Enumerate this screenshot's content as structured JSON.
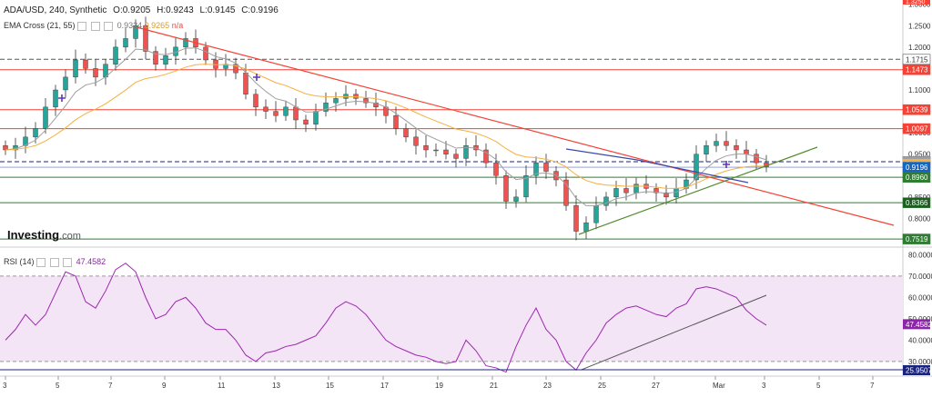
{
  "header": {
    "symbol": "ADA/USD, 240, Synthetic",
    "open": "O:0.9205",
    "high": "H:0.9243",
    "low": "L:0.9145",
    "close": "C:0.9196",
    "ema_label": "EMA Cross (21, 55)",
    "ema_v1": "0.9324",
    "ema_v2": "0.9265",
    "ema_v3": "n/a",
    "rsi_label": "RSI (14)",
    "rsi_value": "47.4582",
    "logo": "Investing",
    "logo_suffix": ".com"
  },
  "colors": {
    "up": "#26a69a",
    "down": "#ef5350",
    "ema_fast": "#9e9e9e",
    "ema_slow": "#f5b041",
    "red_line": "#f44336",
    "green_line": "#388e3c",
    "blue_line": "#1565c0",
    "rsi_line": "#9c27b0",
    "rsi_band": "#f3e5f5"
  },
  "chart_data": [
    {
      "type": "candlestick",
      "title": "ADA/USD, 240, Synthetic",
      "x_tick_labels": [
        "3",
        "5",
        "7",
        "9",
        "11",
        "13",
        "15",
        "17",
        "19",
        "21",
        "23",
        "25",
        "27",
        "Mar",
        "3",
        "5",
        "7"
      ],
      "y_tick_labels": [
        "1.3000",
        "1.2500",
        "1.2000",
        "1.1500",
        "1.1000",
        "1.0500",
        "1.0000",
        "0.9500",
        "0.9000",
        "0.8500",
        "0.8000"
      ],
      "ylim": [
        0.75,
        1.31
      ],
      "price_levels": [
        {
          "label": "1.1715",
          "value": 1.1715,
          "style": "dashed-gray",
          "color": "#555555"
        },
        {
          "label": "1.1473",
          "value": 1.1473,
          "style": "red",
          "color": "#f44336"
        },
        {
          "label": "1.0539",
          "value": 1.0539,
          "style": "red",
          "color": "#f44336"
        },
        {
          "label": "1.0097",
          "value": 1.0097,
          "style": "red",
          "color": "#f44336"
        },
        {
          "label": "0.9325",
          "value": 0.9325,
          "style": "dashed-blue",
          "color": "#1a237e"
        },
        {
          "label": "0.9324",
          "value": 0.9324,
          "style": "ema",
          "color": "#9e9e9e"
        },
        {
          "label": "0.9265",
          "value": 0.9265,
          "style": "ema",
          "color": "#f5b041"
        },
        {
          "label": "0.9196",
          "value": 0.9196,
          "style": "current",
          "color": "#1565c0"
        },
        {
          "label": "0.8960",
          "value": 0.896,
          "style": "green",
          "color": "#388e3c"
        },
        {
          "label": "0.8366",
          "value": 0.8366,
          "style": "green",
          "color": "#388e3c"
        },
        {
          "label": "0.7519",
          "value": 0.7519,
          "style": "green",
          "color": "#388e3c"
        }
      ],
      "top_tag": "1.3250",
      "close_values": [
        0.96,
        0.97,
        0.99,
        1.01,
        1.06,
        1.1,
        1.13,
        1.17,
        1.15,
        1.13,
        1.16,
        1.2,
        1.22,
        1.25,
        1.19,
        1.16,
        1.18,
        1.2,
        1.22,
        1.2,
        1.17,
        1.15,
        1.16,
        1.14,
        1.09,
        1.06,
        1.05,
        1.04,
        1.06,
        1.03,
        1.02,
        1.05,
        1.07,
        1.08,
        1.09,
        1.08,
        1.07,
        1.06,
        1.04,
        1.01,
        0.99,
        0.97,
        0.96,
        0.96,
        0.95,
        0.94,
        0.97,
        0.96,
        0.93,
        0.9,
        0.84,
        0.85,
        0.9,
        0.93,
        0.91,
        0.89,
        0.83,
        0.77,
        0.79,
        0.83,
        0.85,
        0.87,
        0.86,
        0.88,
        0.87,
        0.86,
        0.85,
        0.87,
        0.89,
        0.95,
        0.97,
        0.98,
        0.97,
        0.96,
        0.95,
        0.93,
        0.92
      ]
    },
    {
      "type": "line",
      "title": "RSI (14)",
      "y_tick_labels": [
        "80.0000",
        "70.0000",
        "60.0000",
        "50.0000",
        "40.0000",
        "30.0000"
      ],
      "ylim": [
        24,
        81
      ],
      "band": [
        30,
        70
      ],
      "last_value": 47.4582,
      "low_tag": "25.9507",
      "values": [
        40,
        45,
        52,
        47,
        52,
        62,
        72,
        70,
        58,
        55,
        63,
        73,
        76,
        72,
        60,
        50,
        52,
        58,
        60,
        55,
        48,
        45,
        45,
        40,
        33,
        30,
        34,
        35,
        37,
        38,
        40,
        42,
        48,
        55,
        58,
        56,
        52,
        46,
        40,
        37,
        35,
        33,
        32,
        30,
        29,
        30,
        40,
        35,
        28,
        27,
        25,
        37,
        47,
        55,
        45,
        40,
        30,
        26,
        34,
        40,
        48,
        52,
        55,
        56,
        54,
        52,
        51,
        55,
        57,
        64,
        65,
        64,
        62,
        60,
        54,
        50,
        47
      ]
    }
  ]
}
